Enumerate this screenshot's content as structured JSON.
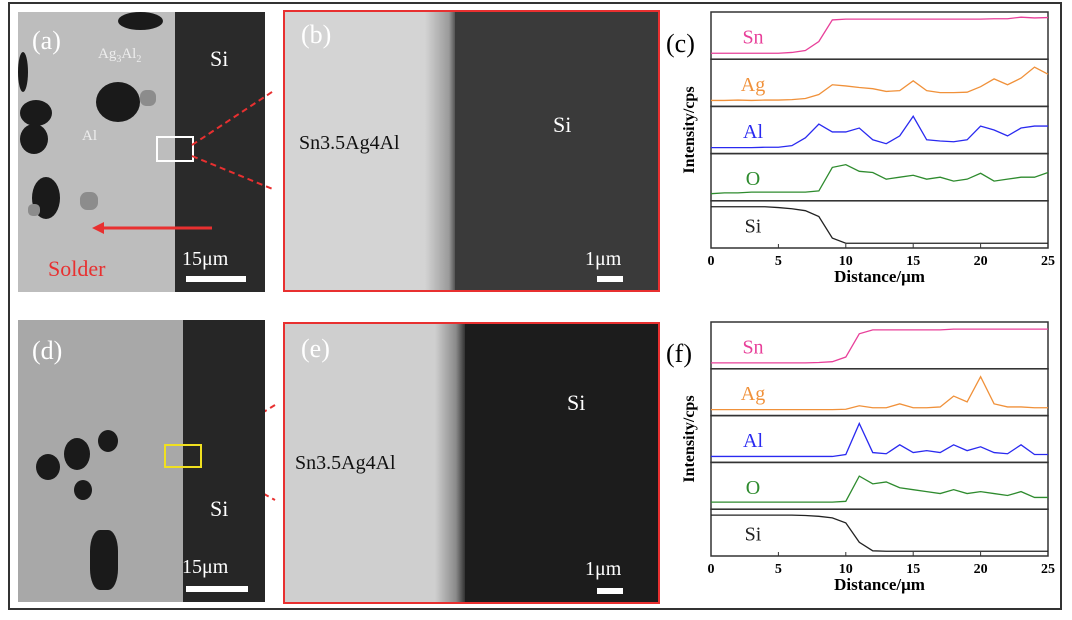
{
  "panels": {
    "a": {
      "label": "(a)",
      "si": "Si",
      "ag3al2": "Ag",
      "ag3al2_sub1": "3",
      "ag3al2_mid": "Al",
      "ag3al2_sub2": "2",
      "al": "Al",
      "solder": "Solder",
      "scale": "15μm"
    },
    "b": {
      "label": "(b)",
      "alloy": "Sn3.5Ag4Al",
      "si": "Si",
      "scale": "1μm"
    },
    "d": {
      "label": "(d)",
      "si": "Si",
      "scale": "15μm"
    },
    "e": {
      "label": "(e)",
      "alloy": "Sn3.5Ag4Al",
      "si": "Si",
      "scale": "1μm"
    }
  },
  "colors": {
    "Sn": "#e8409a",
    "Ag": "#f0913a",
    "Al": "#2a2af0",
    "O": "#2e8b2e",
    "Si": "#222222",
    "zoom_box_a": "#ffffff",
    "zoom_box_d": "#f0e020",
    "arrow": "#e83030"
  },
  "chart_data": [
    {
      "type": "line",
      "panel_label": "(c)",
      "xlabel": "Distance/μm",
      "ylabel": "Intensity/cps",
      "xlim": [
        0,
        25
      ],
      "xticks": [
        "0",
        "5",
        "10",
        "15",
        "20",
        "25"
      ],
      "layout": "stacked strips",
      "x": [
        0,
        1,
        2,
        3,
        4,
        5,
        6,
        7,
        8,
        9,
        10,
        11,
        12,
        13,
        14,
        15,
        16,
        17,
        18,
        19,
        20,
        21,
        22,
        23,
        24,
        25
      ],
      "series": [
        {
          "name": "Sn",
          "values": [
            0.05,
            0.05,
            0.05,
            0.05,
            0.05,
            0.05,
            0.07,
            0.12,
            0.35,
            0.9,
            0.92,
            0.92,
            0.92,
            0.92,
            0.92,
            0.92,
            0.92,
            0.92,
            0.92,
            0.92,
            0.92,
            0.93,
            0.93,
            0.97,
            0.95,
            0.96
          ]
        },
        {
          "name": "Ag",
          "values": [
            0.05,
            0.05,
            0.06,
            0.05,
            0.06,
            0.06,
            0.07,
            0.1,
            0.2,
            0.45,
            0.42,
            0.38,
            0.35,
            0.28,
            0.3,
            0.55,
            0.3,
            0.25,
            0.25,
            0.26,
            0.4,
            0.6,
            0.45,
            0.62,
            0.9,
            0.72
          ]
        },
        {
          "name": "Al",
          "values": [
            0.05,
            0.05,
            0.05,
            0.05,
            0.06,
            0.06,
            0.1,
            0.3,
            0.65,
            0.45,
            0.45,
            0.55,
            0.25,
            0.15,
            0.35,
            0.85,
            0.25,
            0.22,
            0.2,
            0.25,
            0.6,
            0.5,
            0.35,
            0.55,
            0.6,
            0.6
          ]
        },
        {
          "name": "O",
          "values": [
            0.08,
            0.1,
            0.1,
            0.12,
            0.12,
            0.12,
            0.12,
            0.12,
            0.15,
            0.75,
            0.82,
            0.65,
            0.62,
            0.45,
            0.5,
            0.55,
            0.45,
            0.5,
            0.4,
            0.45,
            0.6,
            0.4,
            0.45,
            0.5,
            0.5,
            0.62
          ]
        },
        {
          "name": "Si",
          "values": [
            0.95,
            0.95,
            0.95,
            0.95,
            0.95,
            0.93,
            0.9,
            0.85,
            0.7,
            0.15,
            0.02,
            0.02,
            0.02,
            0.02,
            0.02,
            0.02,
            0.02,
            0.02,
            0.02,
            0.02,
            0.02,
            0.02,
            0.02,
            0.02,
            0.02,
            0.02
          ]
        }
      ]
    },
    {
      "type": "line",
      "panel_label": "(f)",
      "xlabel": "Distance/μm",
      "ylabel": "Intensity/cps",
      "xlim": [
        0,
        25
      ],
      "xticks": [
        "0",
        "5",
        "10",
        "15",
        "20",
        "25"
      ],
      "layout": "stacked strips",
      "x": [
        0,
        1,
        2,
        3,
        4,
        5,
        6,
        7,
        8,
        9,
        10,
        11,
        12,
        13,
        14,
        15,
        16,
        17,
        18,
        19,
        20,
        21,
        22,
        23,
        24,
        25
      ],
      "series": [
        {
          "name": "Sn",
          "values": [
            0.05,
            0.05,
            0.05,
            0.05,
            0.05,
            0.05,
            0.05,
            0.05,
            0.06,
            0.08,
            0.2,
            0.8,
            0.9,
            0.9,
            0.9,
            0.9,
            0.9,
            0.9,
            0.92,
            0.92,
            0.92,
            0.92,
            0.92,
            0.92,
            0.92,
            0.92
          ]
        },
        {
          "name": "Ag",
          "values": [
            0.05,
            0.05,
            0.05,
            0.05,
            0.05,
            0.05,
            0.05,
            0.05,
            0.05,
            0.05,
            0.06,
            0.15,
            0.1,
            0.1,
            0.2,
            0.1,
            0.1,
            0.12,
            0.4,
            0.25,
            0.9,
            0.2,
            0.12,
            0.12,
            0.1,
            0.1
          ]
        },
        {
          "name": "Al",
          "values": [
            0.05,
            0.05,
            0.05,
            0.05,
            0.05,
            0.05,
            0.05,
            0.05,
            0.05,
            0.05,
            0.1,
            0.9,
            0.15,
            0.12,
            0.35,
            0.15,
            0.2,
            0.15,
            0.35,
            0.2,
            0.3,
            0.15,
            0.12,
            0.35,
            0.1,
            0.1
          ]
        },
        {
          "name": "O",
          "values": [
            0.08,
            0.08,
            0.08,
            0.08,
            0.08,
            0.08,
            0.08,
            0.08,
            0.08,
            0.08,
            0.1,
            0.75,
            0.55,
            0.6,
            0.45,
            0.4,
            0.35,
            0.3,
            0.4,
            0.3,
            0.35,
            0.3,
            0.25,
            0.35,
            0.2,
            0.2
          ]
        },
        {
          "name": "Si",
          "values": [
            0.95,
            0.95,
            0.95,
            0.95,
            0.95,
            0.95,
            0.95,
            0.94,
            0.92,
            0.88,
            0.75,
            0.25,
            0.03,
            0.02,
            0.02,
            0.02,
            0.02,
            0.02,
            0.02,
            0.02,
            0.02,
            0.02,
            0.02,
            0.02,
            0.02,
            0.02
          ]
        }
      ]
    }
  ]
}
